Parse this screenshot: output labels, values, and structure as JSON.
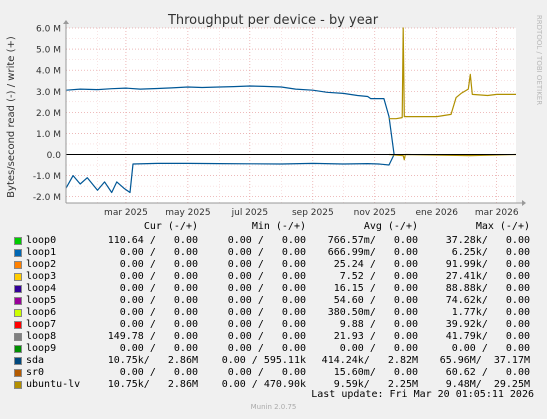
{
  "chart_data": {
    "type": "line",
    "title": "Throughput per device - by year",
    "ylabel": "Bytes/second read (-) / write (+)",
    "watermark": "RRDTOOL / TOBI OETIKER",
    "ylim": [
      -2300000,
      6000000
    ],
    "y_ticks": [
      {
        "value": 6000000,
        "label": "6.0 M"
      },
      {
        "value": 5000000,
        "label": "5.0 M"
      },
      {
        "value": 4000000,
        "label": "4.0 M"
      },
      {
        "value": 3000000,
        "label": "3.0 M"
      },
      {
        "value": 2000000,
        "label": "2.0 M"
      },
      {
        "value": 1000000,
        "label": "1.0 M"
      },
      {
        "value": 0,
        "label": "0.0"
      },
      {
        "value": -1000000,
        "label": "-1.0 M"
      },
      {
        "value": -2000000,
        "label": "-2.0 M"
      }
    ],
    "xlim": [
      "2025-01-01",
      "2026-03-20"
    ],
    "x_ticks": [
      {
        "date": "2025-03-01",
        "label": "mar 2025"
      },
      {
        "date": "2025-05-01",
        "label": "may 2025"
      },
      {
        "date": "2025-07-01",
        "label": "jul 2025"
      },
      {
        "date": "2025-09-01",
        "label": "sep 2025"
      },
      {
        "date": "2025-11-01",
        "label": "nov 2025"
      },
      {
        "date": "2026-01-01",
        "label": "ene 2026"
      },
      {
        "date": "2026-03-01",
        "label": "mar 2026"
      }
    ],
    "series": [
      {
        "name": "sda",
        "color": "#005796",
        "write": [
          [
            "2025-01-01",
            3050000
          ],
          [
            "2025-01-15",
            3100000
          ],
          [
            "2025-02-01",
            3080000
          ],
          [
            "2025-02-15",
            3120000
          ],
          [
            "2025-03-01",
            3150000
          ],
          [
            "2025-03-15",
            3100000
          ],
          [
            "2025-04-01",
            3130000
          ],
          [
            "2025-04-15",
            3160000
          ],
          [
            "2025-05-01",
            3200000
          ],
          [
            "2025-05-15",
            3180000
          ],
          [
            "2025-06-01",
            3200000
          ],
          [
            "2025-06-15",
            3220000
          ],
          [
            "2025-07-01",
            3250000
          ],
          [
            "2025-07-15",
            3230000
          ],
          [
            "2025-08-01",
            3200000
          ],
          [
            "2025-08-15",
            3100000
          ],
          [
            "2025-09-01",
            3050000
          ],
          [
            "2025-09-15",
            2950000
          ],
          [
            "2025-10-01",
            2900000
          ],
          [
            "2025-10-15",
            2800000
          ],
          [
            "2025-10-25",
            2750000
          ],
          [
            "2025-10-28",
            2650000
          ],
          [
            "2025-11-10",
            2650000
          ],
          [
            "2025-11-15",
            1800000
          ],
          [
            "2025-11-20",
            0
          ]
        ],
        "read": [
          [
            "2025-01-01",
            -1600000
          ],
          [
            "2025-01-08",
            -1000000
          ],
          [
            "2025-01-15",
            -1400000
          ],
          [
            "2025-01-22",
            -1100000
          ],
          [
            "2025-02-01",
            -1700000
          ],
          [
            "2025-02-08",
            -1300000
          ],
          [
            "2025-02-15",
            -1800000
          ],
          [
            "2025-02-20",
            -1300000
          ],
          [
            "2025-02-27",
            -1600000
          ],
          [
            "2025-03-05",
            -1800000
          ],
          [
            "2025-03-08",
            -450000
          ],
          [
            "2025-04-01",
            -420000
          ],
          [
            "2025-05-01",
            -420000
          ],
          [
            "2025-06-01",
            -430000
          ],
          [
            "2025-07-01",
            -440000
          ],
          [
            "2025-08-01",
            -450000
          ],
          [
            "2025-09-01",
            -420000
          ],
          [
            "2025-10-01",
            -450000
          ],
          [
            "2025-10-25",
            -430000
          ],
          [
            "2025-11-05",
            -450000
          ],
          [
            "2025-11-15",
            -500000
          ],
          [
            "2025-11-20",
            0
          ]
        ]
      },
      {
        "name": "ubuntu-lv",
        "color": "#b09000",
        "write": [
          [
            "2025-11-15",
            1700000
          ],
          [
            "2025-11-22",
            1700000
          ],
          [
            "2025-11-28",
            1750000
          ],
          [
            "2025-11-29",
            6000000
          ],
          [
            "2025-11-30",
            1800000
          ],
          [
            "2025-12-15",
            1800000
          ],
          [
            "2026-01-01",
            1800000
          ],
          [
            "2026-01-15",
            1900000
          ],
          [
            "2026-01-20",
            2700000
          ],
          [
            "2026-01-25",
            2900000
          ],
          [
            "2026-02-01",
            3100000
          ],
          [
            "2026-02-03",
            3800000
          ],
          [
            "2026-02-05",
            2850000
          ],
          [
            "2026-02-20",
            2800000
          ],
          [
            "2026-03-01",
            2850000
          ],
          [
            "2026-03-20",
            2850000
          ]
        ],
        "read": [
          [
            "2025-11-15",
            0
          ],
          [
            "2025-11-29",
            -50000
          ],
          [
            "2025-11-30",
            -250000
          ],
          [
            "2025-12-01",
            0
          ],
          [
            "2026-02-03",
            -50000
          ],
          [
            "2026-03-20",
            0
          ]
        ]
      }
    ]
  },
  "legend": {
    "headers": {
      "cur": "Cur (-/+)",
      "min": "Min (-/+)",
      "avg": "Avg (-/+)",
      "max": "Max (-/+)"
    },
    "rows": [
      {
        "name": "loop0",
        "color": "#00cc00",
        "cur": "110.64 /   0.00",
        "min": "0.00 /   0.00",
        "avg": "766.57m/   0.00",
        "max": "37.28k/   0.00"
      },
      {
        "name": "loop1",
        "color": "#0066b3",
        "cur": "0.00 /   0.00",
        "min": "0.00 /   0.00",
        "avg": "666.99m/   0.00",
        "max": "6.25k/   0.00"
      },
      {
        "name": "loop2",
        "color": "#ff8000",
        "cur": "0.00 /   0.00",
        "min": "0.00 /   0.00",
        "avg": "25.24 /   0.00",
        "max": "91.99k/   0.00"
      },
      {
        "name": "loop3",
        "color": "#ffcc00",
        "cur": "0.00 /   0.00",
        "min": "0.00 /   0.00",
        "avg": "7.52 /   0.00",
        "max": "27.41k/   0.00"
      },
      {
        "name": "loop4",
        "color": "#330099",
        "cur": "0.00 /   0.00",
        "min": "0.00 /   0.00",
        "avg": "16.15 /   0.00",
        "max": "88.88k/   0.00"
      },
      {
        "name": "loop5",
        "color": "#990099",
        "cur": "0.00 /   0.00",
        "min": "0.00 /   0.00",
        "avg": "54.60 /   0.00",
        "max": "74.62k/   0.00"
      },
      {
        "name": "loop6",
        "color": "#ccff00",
        "cur": "0.00 /   0.00",
        "min": "0.00 /   0.00",
        "avg": "380.50m/   0.00",
        "max": "1.77k/   0.00"
      },
      {
        "name": "loop7",
        "color": "#ff0000",
        "cur": "0.00 /   0.00",
        "min": "0.00 /   0.00",
        "avg": "9.88 /   0.00",
        "max": "39.92k/   0.00"
      },
      {
        "name": "loop8",
        "color": "#808080",
        "cur": "149.78 /   0.00",
        "min": "0.00 /   0.00",
        "avg": "21.93 /   0.00",
        "max": "41.79k/   0.00"
      },
      {
        "name": "loop9",
        "color": "#008f00",
        "cur": "0.00 /   0.00",
        "min": "0.00 /   0.00",
        "avg": "0.00 /   0.00",
        "max": "0.00 /   0.00"
      },
      {
        "name": "sda",
        "color": "#00487d",
        "cur": "10.75k/   2.86M",
        "min": "0.00 / 595.11k",
        "avg": "414.24k/   2.82M",
        "max": "65.96M/  37.17M"
      },
      {
        "name": "sr0",
        "color": "#b35a00",
        "cur": "0.00 /   0.00",
        "min": "0.00 /   0.00",
        "avg": "15.60m/   0.00",
        "max": "60.62 /   0.00"
      },
      {
        "name": "ubuntu-lv",
        "color": "#b38f00",
        "cur": "10.75k/   2.86M",
        "min": "0.00 / 470.90k",
        "avg": "9.59k/   2.25M",
        "max": "9.48M/  29.25M"
      }
    ],
    "last_update": "Last update: Fri Mar 20 01:05:11 2026"
  },
  "footer": "Munin 2.0.75"
}
